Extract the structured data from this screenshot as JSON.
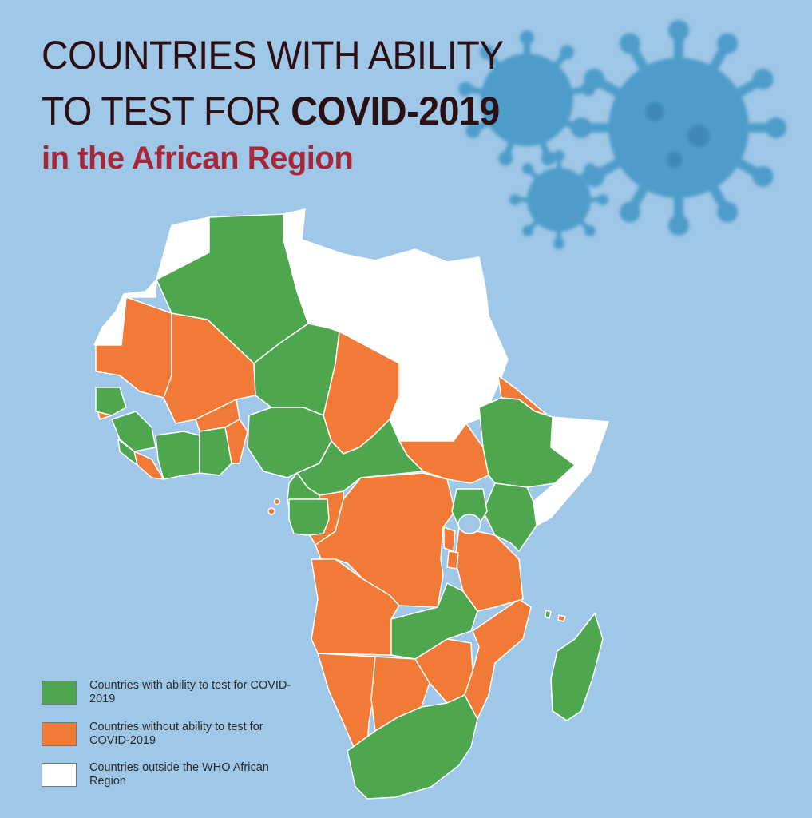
{
  "title": {
    "line1": "COUNTRIES WITH ABILITY",
    "line2_prefix": "TO TEST FOR ",
    "line2_bold": "COVID-2019",
    "line3": "in the African Region"
  },
  "colors": {
    "ocean": "#9fc7e8",
    "can_test": "#4ea64f",
    "cannot_test": "#f07a36",
    "outside_region": "#ffffff",
    "title_dark": "#2b0f12",
    "title_red": "#a4283a",
    "virus": "#3f95c4"
  },
  "legend": [
    {
      "label": "Countries with ability to test for COVID-2019",
      "color": "#4ea64f"
    },
    {
      "label": "Countries without ability to test for COVID-2019",
      "color": "#f07a36"
    },
    {
      "label": "Countries outside the WHO African Region",
      "color": "#ffffff"
    }
  ],
  "icons": [
    "coronavirus-icon"
  ]
}
